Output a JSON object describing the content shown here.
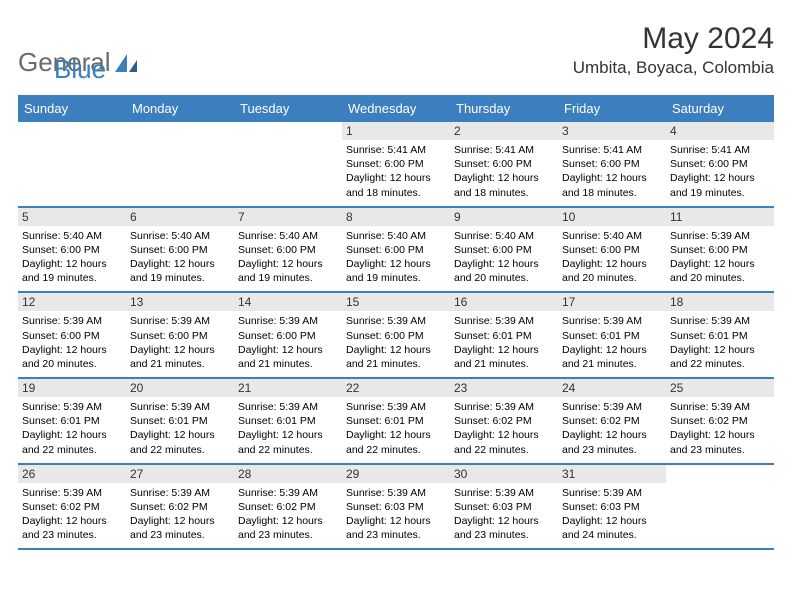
{
  "logo": {
    "text1": "General",
    "text2": "Blue"
  },
  "title": "May 2024",
  "location": "Umbita, Boyaca, Colombia",
  "colors": {
    "header_bg": "#3b7fbf",
    "header_text": "#ffffff",
    "daynum_bg": "#e8e8e8",
    "border": "#3b7fbf",
    "logo_gray": "#6b6b6b",
    "logo_blue": "#3b7fbf"
  },
  "day_headers": [
    "Sunday",
    "Monday",
    "Tuesday",
    "Wednesday",
    "Thursday",
    "Friday",
    "Saturday"
  ],
  "weeks": [
    [
      {
        "n": "",
        "sr": "",
        "ss": "",
        "dl": ""
      },
      {
        "n": "",
        "sr": "",
        "ss": "",
        "dl": ""
      },
      {
        "n": "",
        "sr": "",
        "ss": "",
        "dl": ""
      },
      {
        "n": "1",
        "sr": "5:41 AM",
        "ss": "6:00 PM",
        "dl": "12 hours and 18 minutes."
      },
      {
        "n": "2",
        "sr": "5:41 AM",
        "ss": "6:00 PM",
        "dl": "12 hours and 18 minutes."
      },
      {
        "n": "3",
        "sr": "5:41 AM",
        "ss": "6:00 PM",
        "dl": "12 hours and 18 minutes."
      },
      {
        "n": "4",
        "sr": "5:41 AM",
        "ss": "6:00 PM",
        "dl": "12 hours and 19 minutes."
      }
    ],
    [
      {
        "n": "5",
        "sr": "5:40 AM",
        "ss": "6:00 PM",
        "dl": "12 hours and 19 minutes."
      },
      {
        "n": "6",
        "sr": "5:40 AM",
        "ss": "6:00 PM",
        "dl": "12 hours and 19 minutes."
      },
      {
        "n": "7",
        "sr": "5:40 AM",
        "ss": "6:00 PM",
        "dl": "12 hours and 19 minutes."
      },
      {
        "n": "8",
        "sr": "5:40 AM",
        "ss": "6:00 PM",
        "dl": "12 hours and 19 minutes."
      },
      {
        "n": "9",
        "sr": "5:40 AM",
        "ss": "6:00 PM",
        "dl": "12 hours and 20 minutes."
      },
      {
        "n": "10",
        "sr": "5:40 AM",
        "ss": "6:00 PM",
        "dl": "12 hours and 20 minutes."
      },
      {
        "n": "11",
        "sr": "5:39 AM",
        "ss": "6:00 PM",
        "dl": "12 hours and 20 minutes."
      }
    ],
    [
      {
        "n": "12",
        "sr": "5:39 AM",
        "ss": "6:00 PM",
        "dl": "12 hours and 20 minutes."
      },
      {
        "n": "13",
        "sr": "5:39 AM",
        "ss": "6:00 PM",
        "dl": "12 hours and 21 minutes."
      },
      {
        "n": "14",
        "sr": "5:39 AM",
        "ss": "6:00 PM",
        "dl": "12 hours and 21 minutes."
      },
      {
        "n": "15",
        "sr": "5:39 AM",
        "ss": "6:00 PM",
        "dl": "12 hours and 21 minutes."
      },
      {
        "n": "16",
        "sr": "5:39 AM",
        "ss": "6:01 PM",
        "dl": "12 hours and 21 minutes."
      },
      {
        "n": "17",
        "sr": "5:39 AM",
        "ss": "6:01 PM",
        "dl": "12 hours and 21 minutes."
      },
      {
        "n": "18",
        "sr": "5:39 AM",
        "ss": "6:01 PM",
        "dl": "12 hours and 22 minutes."
      }
    ],
    [
      {
        "n": "19",
        "sr": "5:39 AM",
        "ss": "6:01 PM",
        "dl": "12 hours and 22 minutes."
      },
      {
        "n": "20",
        "sr": "5:39 AM",
        "ss": "6:01 PM",
        "dl": "12 hours and 22 minutes."
      },
      {
        "n": "21",
        "sr": "5:39 AM",
        "ss": "6:01 PM",
        "dl": "12 hours and 22 minutes."
      },
      {
        "n": "22",
        "sr": "5:39 AM",
        "ss": "6:01 PM",
        "dl": "12 hours and 22 minutes."
      },
      {
        "n": "23",
        "sr": "5:39 AM",
        "ss": "6:02 PM",
        "dl": "12 hours and 22 minutes."
      },
      {
        "n": "24",
        "sr": "5:39 AM",
        "ss": "6:02 PM",
        "dl": "12 hours and 23 minutes."
      },
      {
        "n": "25",
        "sr": "5:39 AM",
        "ss": "6:02 PM",
        "dl": "12 hours and 23 minutes."
      }
    ],
    [
      {
        "n": "26",
        "sr": "5:39 AM",
        "ss": "6:02 PM",
        "dl": "12 hours and 23 minutes."
      },
      {
        "n": "27",
        "sr": "5:39 AM",
        "ss": "6:02 PM",
        "dl": "12 hours and 23 minutes."
      },
      {
        "n": "28",
        "sr": "5:39 AM",
        "ss": "6:02 PM",
        "dl": "12 hours and 23 minutes."
      },
      {
        "n": "29",
        "sr": "5:39 AM",
        "ss": "6:03 PM",
        "dl": "12 hours and 23 minutes."
      },
      {
        "n": "30",
        "sr": "5:39 AM",
        "ss": "6:03 PM",
        "dl": "12 hours and 23 minutes."
      },
      {
        "n": "31",
        "sr": "5:39 AM",
        "ss": "6:03 PM",
        "dl": "12 hours and 24 minutes."
      },
      {
        "n": "",
        "sr": "",
        "ss": "",
        "dl": ""
      }
    ]
  ],
  "labels": {
    "sunrise": "Sunrise:",
    "sunset": "Sunset:",
    "daylight": "Daylight:"
  }
}
